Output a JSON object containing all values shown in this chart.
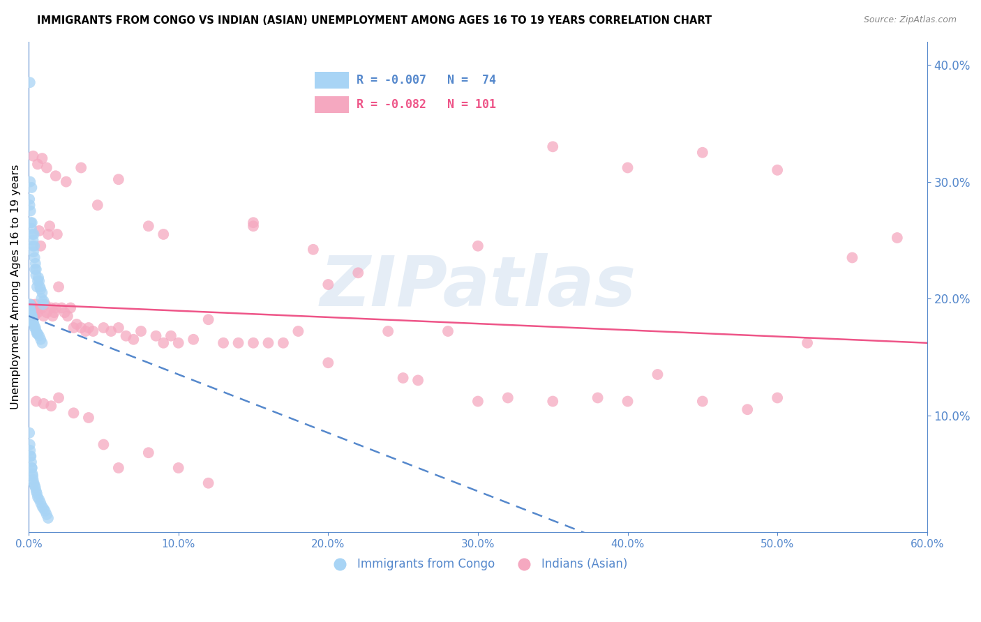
{
  "title": "IMMIGRANTS FROM CONGO VS INDIAN (ASIAN) UNEMPLOYMENT AMONG AGES 16 TO 19 YEARS CORRELATION CHART",
  "source": "Source: ZipAtlas.com",
  "ylabel": "Unemployment Among Ages 16 to 19 years",
  "xlim": [
    0.0,
    0.6
  ],
  "ylim": [
    0.0,
    0.42
  ],
  "xticks": [
    0.0,
    0.1,
    0.2,
    0.3,
    0.4,
    0.5,
    0.6
  ],
  "yticks_right": [
    0.1,
    0.2,
    0.3,
    0.4
  ],
  "legend_labels": [
    "Immigrants from Congo",
    "Indians (Asian)"
  ],
  "blue_color": "#A8D4F5",
  "pink_color": "#F5A8C0",
  "blue_line_color": "#5588CC",
  "pink_line_color": "#EE5588",
  "axis_color": "#5588CC",
  "grid_color": "#CCCCCC",
  "R_congo": -0.007,
  "N_congo": 74,
  "R_indian": -0.082,
  "N_indian": 101,
  "watermark": "ZIPatlas",
  "congo_x": [
    0.0008,
    0.001,
    0.0005,
    0.0012,
    0.0007,
    0.0015,
    0.002,
    0.0018,
    0.0025,
    0.0022,
    0.003,
    0.0028,
    0.0035,
    0.0032,
    0.004,
    0.0038,
    0.0045,
    0.0042,
    0.005,
    0.0048,
    0.006,
    0.0055,
    0.0065,
    0.007,
    0.0075,
    0.008,
    0.009,
    0.0085,
    0.01,
    0.0095,
    0.0005,
    0.0008,
    0.001,
    0.0012,
    0.0015,
    0.0018,
    0.002,
    0.0022,
    0.0025,
    0.0028,
    0.003,
    0.0035,
    0.004,
    0.0045,
    0.005,
    0.0055,
    0.006,
    0.007,
    0.008,
    0.009,
    0.0005,
    0.0008,
    0.001,
    0.0012,
    0.0015,
    0.0018,
    0.002,
    0.0022,
    0.0025,
    0.0028,
    0.003,
    0.0035,
    0.004,
    0.0045,
    0.005,
    0.0055,
    0.006,
    0.007,
    0.008,
    0.009,
    0.01,
    0.011,
    0.012,
    0.013
  ],
  "congo_y": [
    0.385,
    0.3,
    0.285,
    0.275,
    0.28,
    0.265,
    0.295,
    0.26,
    0.255,
    0.265,
    0.25,
    0.245,
    0.255,
    0.24,
    0.235,
    0.245,
    0.23,
    0.225,
    0.225,
    0.22,
    0.215,
    0.21,
    0.218,
    0.215,
    0.21,
    0.208,
    0.205,
    0.2,
    0.198,
    0.195,
    0.195,
    0.195,
    0.19,
    0.19,
    0.188,
    0.185,
    0.185,
    0.185,
    0.183,
    0.18,
    0.18,
    0.178,
    0.175,
    0.175,
    0.172,
    0.17,
    0.17,
    0.168,
    0.165,
    0.162,
    0.085,
    0.075,
    0.07,
    0.065,
    0.065,
    0.06,
    0.055,
    0.055,
    0.05,
    0.048,
    0.045,
    0.042,
    0.04,
    0.038,
    0.035,
    0.033,
    0.03,
    0.028,
    0.025,
    0.022,
    0.02,
    0.018,
    0.015,
    0.012
  ],
  "indian_x": [
    0.001,
    0.0015,
    0.002,
    0.0025,
    0.003,
    0.0035,
    0.004,
    0.0045,
    0.005,
    0.006,
    0.007,
    0.008,
    0.009,
    0.01,
    0.011,
    0.012,
    0.013,
    0.014,
    0.015,
    0.016,
    0.017,
    0.018,
    0.019,
    0.02,
    0.022,
    0.024,
    0.026,
    0.028,
    0.03,
    0.032,
    0.035,
    0.038,
    0.04,
    0.043,
    0.046,
    0.05,
    0.055,
    0.06,
    0.065,
    0.07,
    0.075,
    0.08,
    0.085,
    0.09,
    0.095,
    0.1,
    0.11,
    0.12,
    0.13,
    0.14,
    0.15,
    0.16,
    0.17,
    0.18,
    0.19,
    0.2,
    0.22,
    0.24,
    0.26,
    0.28,
    0.3,
    0.32,
    0.35,
    0.38,
    0.4,
    0.42,
    0.45,
    0.48,
    0.5,
    0.52,
    0.55,
    0.005,
    0.01,
    0.015,
    0.02,
    0.03,
    0.04,
    0.05,
    0.06,
    0.08,
    0.1,
    0.12,
    0.15,
    0.2,
    0.25,
    0.3,
    0.35,
    0.4,
    0.45,
    0.5,
    0.003,
    0.006,
    0.009,
    0.012,
    0.018,
    0.025,
    0.035,
    0.06,
    0.09,
    0.15,
    0.58
  ],
  "indian_y": [
    0.19,
    0.195,
    0.185,
    0.192,
    0.188,
    0.192,
    0.185,
    0.195,
    0.19,
    0.188,
    0.258,
    0.245,
    0.192,
    0.185,
    0.195,
    0.188,
    0.255,
    0.262,
    0.192,
    0.185,
    0.188,
    0.192,
    0.255,
    0.21,
    0.192,
    0.188,
    0.185,
    0.192,
    0.175,
    0.178,
    0.175,
    0.172,
    0.175,
    0.172,
    0.28,
    0.175,
    0.172,
    0.175,
    0.168,
    0.165,
    0.172,
    0.262,
    0.168,
    0.162,
    0.168,
    0.162,
    0.165,
    0.182,
    0.162,
    0.162,
    0.162,
    0.162,
    0.162,
    0.172,
    0.242,
    0.212,
    0.222,
    0.172,
    0.13,
    0.172,
    0.112,
    0.115,
    0.112,
    0.115,
    0.112,
    0.135,
    0.112,
    0.105,
    0.115,
    0.162,
    0.235,
    0.112,
    0.11,
    0.108,
    0.115,
    0.102,
    0.098,
    0.075,
    0.055,
    0.068,
    0.055,
    0.042,
    0.265,
    0.145,
    0.132,
    0.245,
    0.33,
    0.312,
    0.325,
    0.31,
    0.322,
    0.315,
    0.32,
    0.312,
    0.305,
    0.3,
    0.312,
    0.302,
    0.255,
    0.262,
    0.252
  ]
}
